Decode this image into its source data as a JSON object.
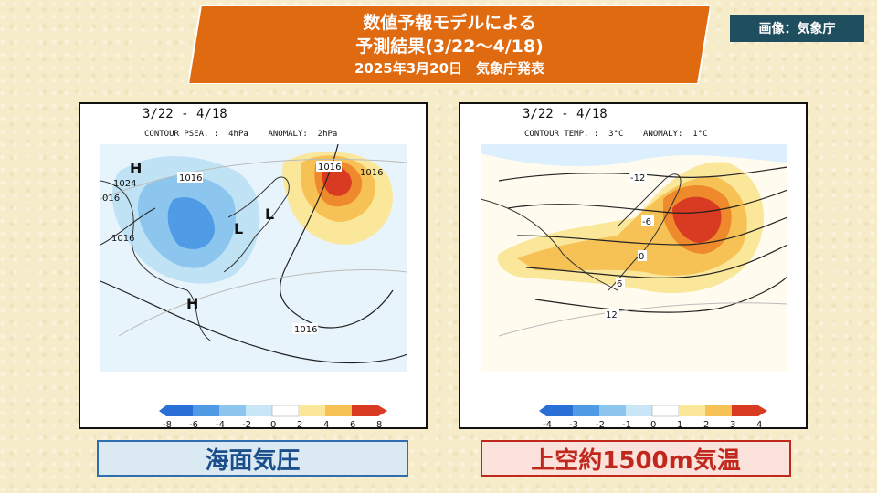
{
  "banner": {
    "line1": "数値予報モデルによる",
    "line2": "予測結果(3/22～4/18)",
    "line3": "2025年3月20日　気象庁発表",
    "color": "#e06a10"
  },
  "credit": "画像：気象庁",
  "left_panel": {
    "date_range": "3/22 - 4/18",
    "contour_info": "CONTOUR PSEA. :  4hPa    ANOMALY:  2hPa",
    "isobar_labels": [
      "1024",
      "1016",
      "016",
      "1016",
      "1016",
      "1016",
      "1016"
    ],
    "pressure_markers": [
      "H",
      "L",
      "L",
      "H"
    ],
    "colorbar_ticks": [
      "-8",
      "-6",
      "-4",
      "-2",
      "0",
      "2",
      "4",
      "6",
      "8"
    ],
    "caption": "海面気圧",
    "caption_color": "#1b4f8c"
  },
  "right_panel": {
    "date_range": "3/22 - 4/18",
    "contour_info": "CONTOUR TEMP. :  3°C    ANOMALY:  1°C",
    "isotherm_labels": [
      "-12",
      "-6",
      "0",
      "6",
      "12"
    ],
    "colorbar_ticks": [
      "-4",
      "-3",
      "-2",
      "-1",
      "0",
      "1",
      "2",
      "3",
      "4"
    ],
    "caption": "上空約1500m気温",
    "caption_color": "#c0281e"
  },
  "colorbar_colors": [
    "#2a6fd6",
    "#4f9be6",
    "#8cc6ef",
    "#c9e6f6",
    "#ffffff",
    "#fbe79a",
    "#f6c255",
    "#ee8a2c",
    "#d93a22"
  ]
}
